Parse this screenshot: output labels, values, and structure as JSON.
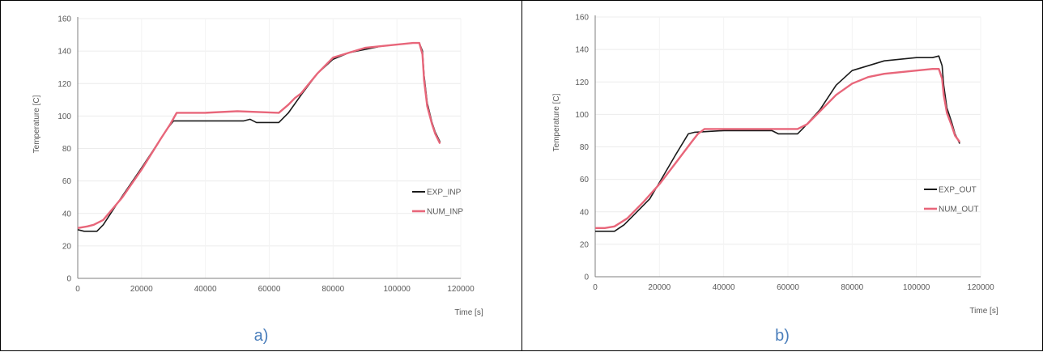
{
  "chart_data": [
    {
      "type": "line",
      "panel_label": "a)",
      "xlabel": "Time [s]",
      "ylabel": "Temperature [C]",
      "xlim": [
        0,
        120000
      ],
      "ylim": [
        0,
        160
      ],
      "x_ticks": [
        "0",
        "20000",
        "40000",
        "60000",
        "80000",
        "100000",
        "120000"
      ],
      "y_ticks": [
        "0",
        "20",
        "40",
        "60",
        "80",
        "100",
        "120",
        "140",
        "160"
      ],
      "grid": true,
      "legend_position": "right",
      "series": [
        {
          "name": "EXP_INP",
          "color": "#1a1a1a",
          "points": [
            [
              0,
              30
            ],
            [
              2000,
              29
            ],
            [
              6000,
              29
            ],
            [
              8000,
              33
            ],
            [
              12000,
              45
            ],
            [
              20000,
              68
            ],
            [
              28000,
              92
            ],
            [
              30000,
              97
            ],
            [
              40000,
              97
            ],
            [
              52000,
              97
            ],
            [
              54000,
              98
            ],
            [
              56000,
              96
            ],
            [
              63000,
              96
            ],
            [
              66000,
              102
            ],
            [
              70000,
              113
            ],
            [
              75000,
              126
            ],
            [
              80000,
              135
            ],
            [
              85000,
              139
            ],
            [
              90000,
              141
            ],
            [
              95000,
              143
            ],
            [
              100000,
              144
            ],
            [
              105000,
              145
            ],
            [
              107000,
              145
            ],
            [
              108000,
              140
            ],
            [
              108500,
              125
            ],
            [
              109500,
              108
            ],
            [
              111000,
              96
            ],
            [
              112000,
              90
            ],
            [
              113500,
              84
            ]
          ]
        },
        {
          "name": "NUM_INP",
          "color": "#e8667a",
          "points": [
            [
              0,
              31
            ],
            [
              3000,
              32
            ],
            [
              5000,
              33
            ],
            [
              8000,
              36
            ],
            [
              14000,
              50
            ],
            [
              20000,
              67
            ],
            [
              26000,
              86
            ],
            [
              29000,
              95
            ],
            [
              31000,
              102
            ],
            [
              40000,
              102
            ],
            [
              50000,
              103
            ],
            [
              63000,
              102
            ],
            [
              66000,
              107
            ],
            [
              68000,
              111
            ],
            [
              70000,
              114
            ],
            [
              75000,
              126
            ],
            [
              80000,
              136
            ],
            [
              85000,
              139
            ],
            [
              90000,
              142
            ],
            [
              95000,
              143
            ],
            [
              100000,
              144
            ],
            [
              105000,
              145
            ],
            [
              107000,
              145
            ],
            [
              108000,
              138
            ],
            [
              108500,
              122
            ],
            [
              109500,
              106
            ],
            [
              111000,
              95
            ],
            [
              112000,
              89
            ],
            [
              113500,
              83
            ]
          ]
        }
      ]
    },
    {
      "type": "line",
      "panel_label": "b)",
      "xlabel": "Time [s]",
      "ylabel": "Temperature [C]",
      "xlim": [
        0,
        120000
      ],
      "ylim": [
        0,
        160
      ],
      "x_ticks": [
        "0",
        "20000",
        "40000",
        "60000",
        "80000",
        "100000",
        "120000"
      ],
      "y_ticks": [
        "0",
        "20",
        "40",
        "60",
        "80",
        "100",
        "120",
        "140",
        "160"
      ],
      "grid": true,
      "legend_position": "right",
      "series": [
        {
          "name": "EXP_OUT",
          "color": "#1a1a1a",
          "points": [
            [
              0,
              28
            ],
            [
              3000,
              28
            ],
            [
              6000,
              28
            ],
            [
              9000,
              32
            ],
            [
              12000,
              38
            ],
            [
              17000,
              48
            ],
            [
              20000,
              58
            ],
            [
              25000,
              75
            ],
            [
              29000,
              88
            ],
            [
              31000,
              89
            ],
            [
              40000,
              90
            ],
            [
              50000,
              90
            ],
            [
              55000,
              90
            ],
            [
              57000,
              88
            ],
            [
              63000,
              88
            ],
            [
              65000,
              92
            ],
            [
              70000,
              103
            ],
            [
              75000,
              118
            ],
            [
              80000,
              127
            ],
            [
              85000,
              130
            ],
            [
              90000,
              133
            ],
            [
              95000,
              134
            ],
            [
              100000,
              135
            ],
            [
              105000,
              135
            ],
            [
              107000,
              136
            ],
            [
              108000,
              130
            ],
            [
              108500,
              118
            ],
            [
              109500,
              104
            ],
            [
              111000,
              95
            ],
            [
              112000,
              88
            ],
            [
              113500,
              82
            ]
          ]
        },
        {
          "name": "NUM_OUT",
          "color": "#e8667a",
          "points": [
            [
              0,
              30
            ],
            [
              3000,
              30
            ],
            [
              6000,
              31
            ],
            [
              10000,
              36
            ],
            [
              15000,
              46
            ],
            [
              20000,
              57
            ],
            [
              25000,
              70
            ],
            [
              30000,
              83
            ],
            [
              32000,
              88
            ],
            [
              34000,
              91
            ],
            [
              40000,
              91
            ],
            [
              50000,
              91
            ],
            [
              60000,
              91
            ],
            [
              63000,
              91
            ],
            [
              66000,
              94
            ],
            [
              70000,
              102
            ],
            [
              75000,
              112
            ],
            [
              80000,
              119
            ],
            [
              85000,
              123
            ],
            [
              90000,
              125
            ],
            [
              95000,
              126
            ],
            [
              100000,
              127
            ],
            [
              105000,
              128
            ],
            [
              107000,
              128
            ],
            [
              108000,
              122
            ],
            [
              108500,
              112
            ],
            [
              109500,
              101
            ],
            [
              111000,
              93
            ],
            [
              112000,
              87
            ],
            [
              113500,
              83
            ]
          ]
        }
      ]
    }
  ]
}
